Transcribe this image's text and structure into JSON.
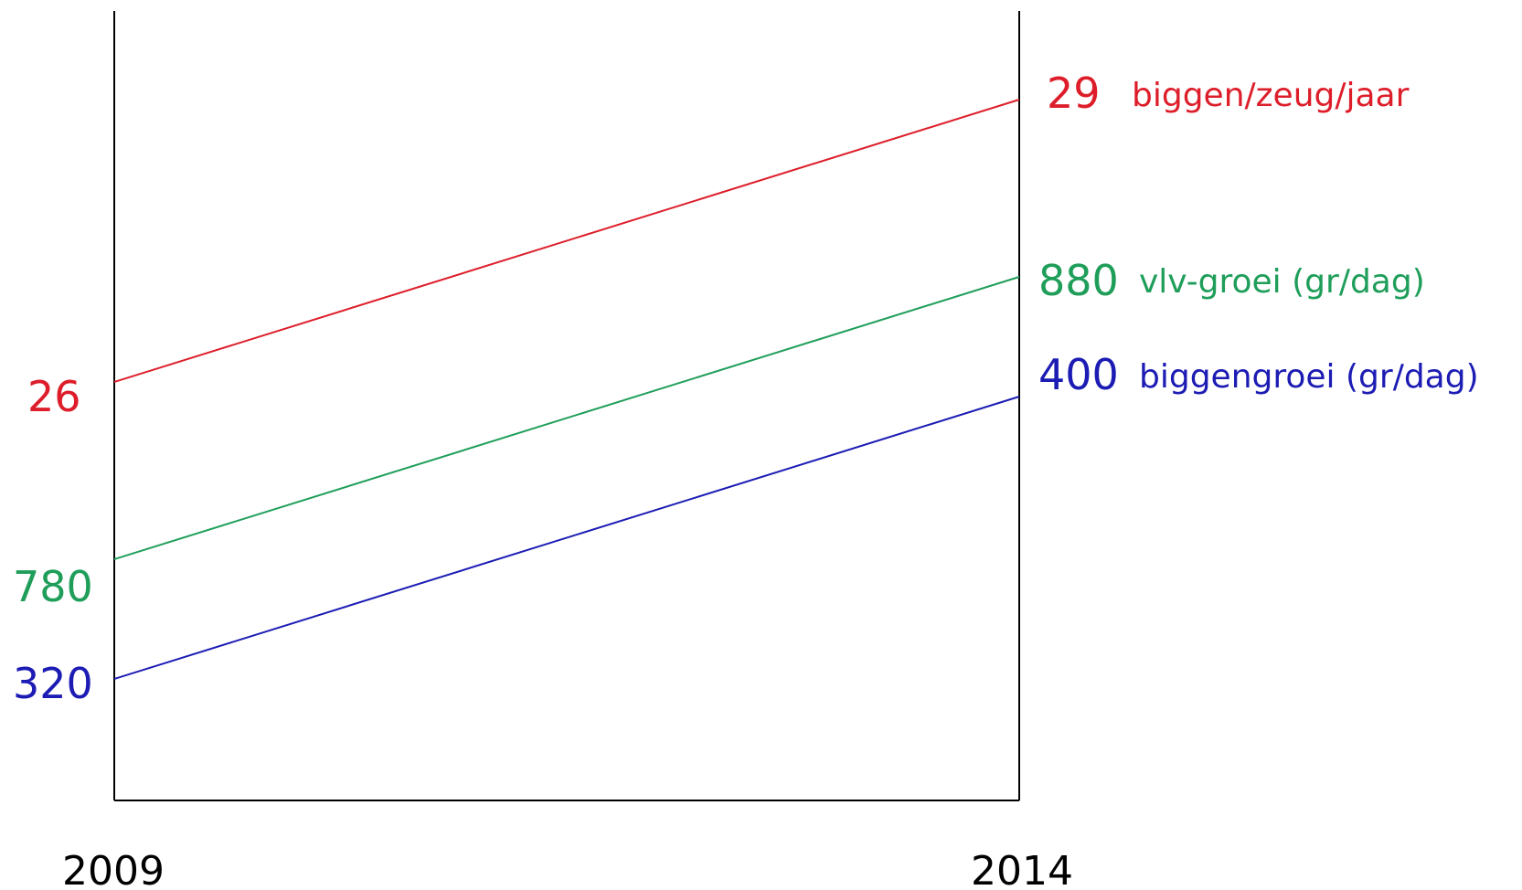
{
  "chart_data": {
    "type": "line",
    "x": [
      "2009",
      "2014"
    ],
    "series": [
      {
        "name": "biggen/zeug/jaar",
        "values": [
          26,
          29
        ],
        "color": "#dd1e2a"
      },
      {
        "name": "vlv-groei (gr/dag)",
        "values": [
          780,
          880
        ],
        "color": "#1f9e5a"
      },
      {
        "name": "biggengroei (gr/dag)",
        "values": [
          320,
          400
        ],
        "color": "#1c1cb4"
      }
    ],
    "start_labels": [
      "26",
      "780",
      "320"
    ],
    "end_labels": [
      "29",
      "880",
      "400"
    ],
    "axis_color": "#000000",
    "grid": false
  }
}
